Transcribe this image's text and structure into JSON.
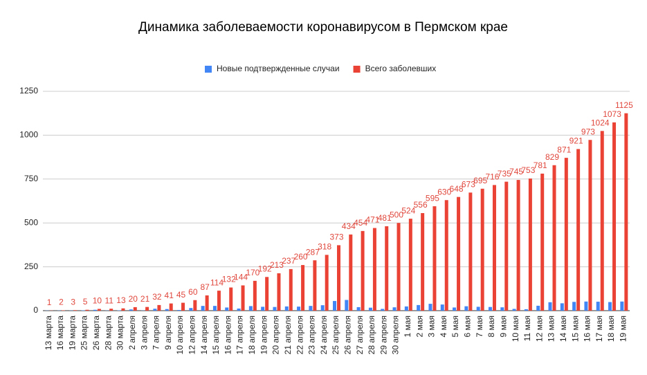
{
  "chart_data": {
    "type": "bar",
    "title": "Динамика заболеваемости коронавирусом в Пермском крае",
    "categories": [
      "13 марта",
      "16 марта",
      "19 марта",
      "25 марта",
      "26 марта",
      "28 марта",
      "30 марта",
      "2 апреля",
      "3 апреля",
      "7 апреля",
      "9 апреля",
      "10 апреля",
      "12 апреля",
      "14 апреля",
      "15 апреля",
      "16 апреля",
      "17 апреля",
      "18 апреля",
      "19 апреля",
      "20 апреля",
      "21 апреля",
      "22 апреля",
      "23 апреля",
      "24 апреля",
      "25 апреля",
      "26 апреля",
      "27 апреля",
      "28 апреля",
      "29 апреля",
      "30 апреля",
      "1 мая",
      "2 мая",
      "3 мая",
      "4 мая",
      "5 мая",
      "6 мая",
      "7 мая",
      "8 мая",
      "9 мая",
      "10 мая",
      "11 мая",
      "12 мая",
      "13 мая",
      "14 мая",
      "15 мая",
      "16 мая",
      "17 мая",
      "18 мая",
      "19 мая"
    ],
    "series": [
      {
        "name": "Новые подтвержденные случаи",
        "color": "#4285f4",
        "values": [
          1,
          1,
          1,
          2,
          5,
          1,
          2,
          7,
          1,
          11,
          9,
          4,
          15,
          27,
          27,
          18,
          12,
          26,
          22,
          21,
          24,
          23,
          27,
          31,
          55,
          61,
          20,
          17,
          10,
          19,
          24,
          32,
          39,
          35,
          18,
          25,
          22,
          21,
          19,
          10,
          8,
          28,
          48,
          42,
          50,
          52,
          51,
          49,
          52
        ]
      },
      {
        "name": "Всего заболевших",
        "color": "#ea4335",
        "show_labels": true,
        "values": [
          1,
          2,
          3,
          5,
          10,
          11,
          13,
          20,
          21,
          32,
          41,
          45,
          60,
          87,
          114,
          132,
          144,
          170,
          192,
          213,
          237,
          260,
          287,
          318,
          373,
          434,
          454,
          471,
          481,
          500,
          524,
          556,
          595,
          630,
          648,
          673,
          695,
          716,
          735,
          745,
          753,
          781,
          829,
          871,
          921,
          973,
          1024,
          1073,
          1125
        ]
      }
    ],
    "ylim": [
      0,
      1250
    ],
    "yticks": [
      0,
      250,
      500,
      750,
      1000,
      1250
    ],
    "grid": true,
    "legend": "top"
  }
}
